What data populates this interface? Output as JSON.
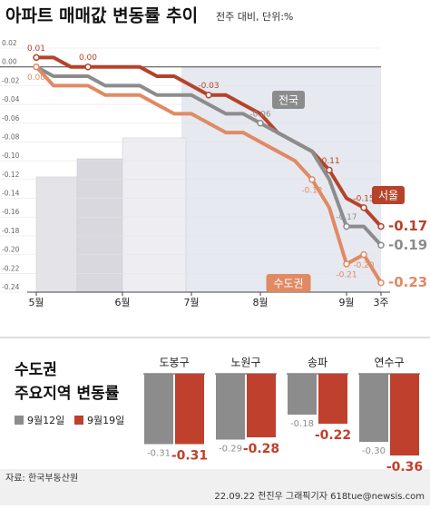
{
  "chart_data": [
    {
      "type": "line",
      "title": "아파트 매매값 변동률 추이",
      "subtitle": "전주 대비, 단위:%",
      "categories": [
        "5월",
        null,
        null,
        null,
        null,
        "6월",
        null,
        null,
        null,
        "7월",
        null,
        null,
        null,
        "8월",
        null,
        null,
        null,
        null,
        "9월",
        null,
        "3주"
      ],
      "ylim": [
        -0.24,
        0.02
      ],
      "yticks": [
        {
          "value": 0.02,
          "label": "0.02"
        },
        {
          "value": 0,
          "label": "0.00"
        },
        {
          "value": -0.02,
          "label": "-0.02"
        },
        {
          "value": -0.04,
          "label": "-0.04"
        },
        {
          "value": -0.06,
          "label": "-0.06"
        },
        {
          "value": -0.08,
          "label": "-0.08"
        },
        {
          "value": -0.1,
          "label": "-0.10"
        },
        {
          "value": -0.12,
          "label": "-0.12"
        },
        {
          "value": -0.14,
          "label": "-0.14"
        },
        {
          "value": -0.16,
          "label": "-0.16"
        },
        {
          "value": -0.18,
          "label": "-0.18"
        },
        {
          "value": -0.2,
          "label": "-0.20"
        },
        {
          "value": -0.22,
          "label": "-0.22"
        },
        {
          "value": -0.24,
          "label": "-0.24"
        }
      ],
      "grid": true,
      "series": [
        {
          "name": "서울",
          "color": "#b5432a",
          "values": [
            0.01,
            0.01,
            0,
            0,
            0,
            0,
            0,
            -0.01,
            -0.01,
            -0.02,
            -0.03,
            -0.03,
            -0.04,
            -0.05,
            -0.07,
            -0.08,
            -0.09,
            -0.11,
            -0.14,
            -0.15,
            -0.17
          ],
          "value_labels": [
            "0.01",
            null,
            null,
            "0.00",
            null,
            null,
            null,
            null,
            null,
            null,
            "-0.03",
            null,
            null,
            null,
            null,
            null,
            null,
            "-0.11",
            null,
            "-0.15",
            "-0.17"
          ]
        },
        {
          "name": "전국",
          "color": "#8c8c8c",
          "values": [
            0,
            -0.01,
            -0.01,
            -0.01,
            -0.02,
            -0.02,
            -0.02,
            -0.03,
            -0.03,
            -0.03,
            -0.04,
            -0.05,
            -0.05,
            -0.06,
            -0.07,
            -0.08,
            -0.09,
            -0.12,
            -0.17,
            -0.17,
            -0.19
          ],
          "value_labels": [
            null,
            null,
            null,
            null,
            null,
            null,
            null,
            null,
            null,
            null,
            null,
            null,
            null,
            "-0.06",
            null,
            null,
            null,
            null,
            "-0.17",
            null,
            "-0.19"
          ]
        },
        {
          "name": "수도권",
          "color": "#e08a64",
          "values": [
            0,
            -0.02,
            -0.02,
            -0.02,
            -0.03,
            -0.03,
            -0.03,
            -0.04,
            -0.05,
            -0.05,
            -0.06,
            -0.07,
            -0.07,
            -0.08,
            -0.09,
            -0.1,
            -0.12,
            -0.15,
            -0.21,
            -0.2,
            -0.23
          ],
          "value_labels": [
            "0.00",
            null,
            null,
            null,
            null,
            null,
            null,
            null,
            null,
            null,
            null,
            null,
            null,
            null,
            null,
            null,
            "-0.12",
            null,
            "-0.21",
            "-0.20",
            "-0.23"
          ]
        }
      ]
    },
    {
      "type": "bar",
      "title": "수도권",
      "subtitle": "주요지역 변동률",
      "categories": [
        "도봉구",
        "노원구",
        "송파",
        "연수구"
      ],
      "ylim": [
        -0.4,
        0
      ],
      "series": [
        {
          "name": "9월12일",
          "color": "#8c8c8c",
          "values": [
            -0.31,
            -0.29,
            -0.18,
            -0.3
          ],
          "value_labels": [
            "-0.31",
            "-0.29",
            "-0.18",
            "-0.30"
          ]
        },
        {
          "name": "9월19일",
          "color": "#c0402e",
          "values": [
            -0.31,
            -0.28,
            -0.22,
            -0.36
          ],
          "value_labels": [
            "-0.31",
            "-0.28",
            "-0.22",
            "-0.36"
          ]
        }
      ]
    }
  ],
  "source": "자료: 한국부동산원",
  "credit": "22.09.22 전진우 그래픽기자 618tue@newsis.com"
}
